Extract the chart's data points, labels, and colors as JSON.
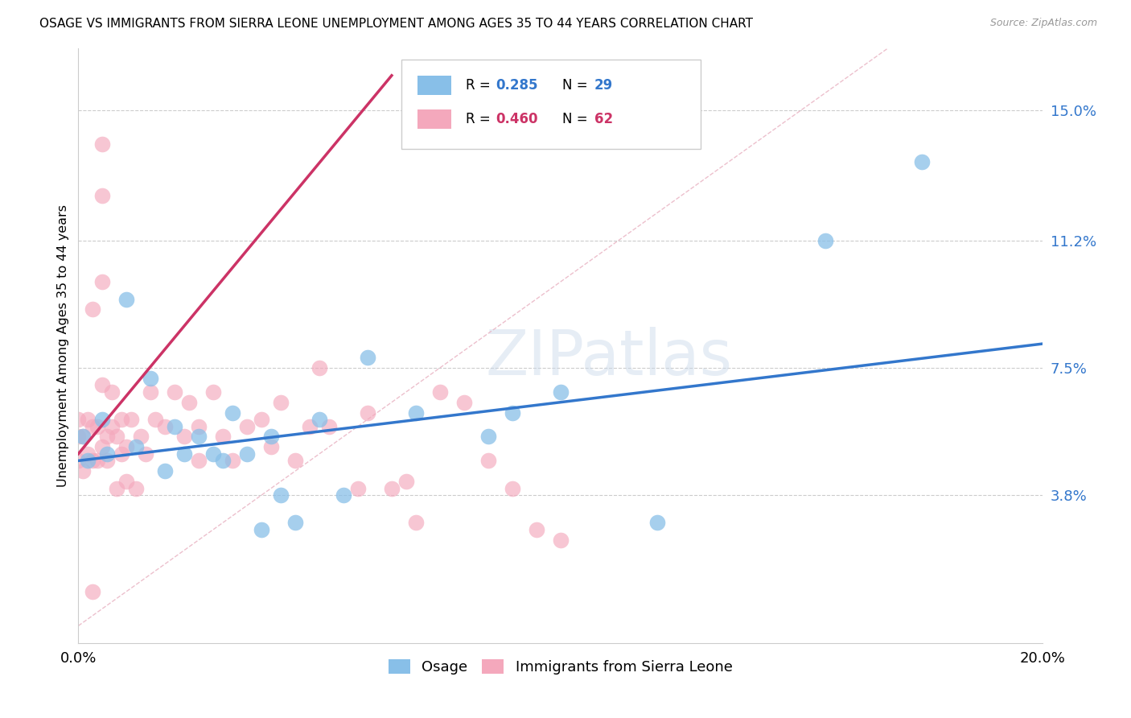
{
  "title": "OSAGE VS IMMIGRANTS FROM SIERRA LEONE UNEMPLOYMENT AMONG AGES 35 TO 44 YEARS CORRELATION CHART",
  "source": "Source: ZipAtlas.com",
  "ylabel": "Unemployment Among Ages 35 to 44 years",
  "legend_blue_label": "Osage",
  "legend_pink_label": "Immigrants from Sierra Leone",
  "xlim": [
    0.0,
    0.2
  ],
  "ylim": [
    -0.005,
    0.168
  ],
  "yticks": [
    0.038,
    0.075,
    0.112,
    0.15
  ],
  "ytick_labels": [
    "3.8%",
    "7.5%",
    "11.2%",
    "15.0%"
  ],
  "xticks": [
    0.0,
    0.04,
    0.08,
    0.12,
    0.16,
    0.2
  ],
  "xtick_labels": [
    "0.0%",
    "",
    "",
    "",
    "",
    "20.0%"
  ],
  "blue_color": "#88bfe8",
  "pink_color": "#f4a8bc",
  "blue_line_color": "#3377cc",
  "pink_line_color": "#cc3366",
  "watermark": "ZIPatlas",
  "blue_scatter_x": [
    0.001,
    0.002,
    0.005,
    0.006,
    0.01,
    0.012,
    0.015,
    0.018,
    0.02,
    0.022,
    0.025,
    0.028,
    0.03,
    0.032,
    0.035,
    0.038,
    0.04,
    0.042,
    0.045,
    0.05,
    0.055,
    0.06,
    0.07,
    0.085,
    0.09,
    0.1,
    0.12,
    0.155,
    0.175
  ],
  "blue_scatter_y": [
    0.055,
    0.048,
    0.06,
    0.05,
    0.095,
    0.052,
    0.072,
    0.045,
    0.058,
    0.05,
    0.055,
    0.05,
    0.048,
    0.062,
    0.05,
    0.028,
    0.055,
    0.038,
    0.03,
    0.06,
    0.038,
    0.078,
    0.062,
    0.055,
    0.062,
    0.068,
    0.03,
    0.112,
    0.135
  ],
  "pink_scatter_x": [
    0.0,
    0.0,
    0.0,
    0.001,
    0.001,
    0.002,
    0.002,
    0.003,
    0.003,
    0.004,
    0.004,
    0.005,
    0.005,
    0.005,
    0.005,
    0.006,
    0.006,
    0.007,
    0.007,
    0.008,
    0.008,
    0.009,
    0.009,
    0.01,
    0.01,
    0.011,
    0.012,
    0.013,
    0.014,
    0.015,
    0.016,
    0.018,
    0.02,
    0.022,
    0.023,
    0.025,
    0.025,
    0.028,
    0.03,
    0.032,
    0.035,
    0.038,
    0.04,
    0.042,
    0.045,
    0.048,
    0.05,
    0.052,
    0.058,
    0.06,
    0.065,
    0.068,
    0.07,
    0.075,
    0.08,
    0.085,
    0.09,
    0.095,
    0.1,
    0.005,
    0.003,
    0.003
  ],
  "pink_scatter_y": [
    0.06,
    0.055,
    0.048,
    0.055,
    0.045,
    0.06,
    0.05,
    0.058,
    0.048,
    0.058,
    0.048,
    0.14,
    0.125,
    0.07,
    0.052,
    0.055,
    0.048,
    0.068,
    0.058,
    0.055,
    0.04,
    0.06,
    0.05,
    0.052,
    0.042,
    0.06,
    0.04,
    0.055,
    0.05,
    0.068,
    0.06,
    0.058,
    0.068,
    0.055,
    0.065,
    0.058,
    0.048,
    0.068,
    0.055,
    0.048,
    0.058,
    0.06,
    0.052,
    0.065,
    0.048,
    0.058,
    0.075,
    0.058,
    0.04,
    0.062,
    0.04,
    0.042,
    0.03,
    0.068,
    0.065,
    0.048,
    0.04,
    0.028,
    0.025,
    0.1,
    0.092,
    0.01
  ],
  "blue_trend_x": [
    0.0,
    0.2
  ],
  "blue_trend_y": [
    0.048,
    0.082
  ],
  "pink_trend_x": [
    0.0,
    0.065
  ],
  "pink_trend_y": [
    0.05,
    0.16
  ],
  "ref_line_x": [
    0.0,
    0.168
  ],
  "ref_line_y": [
    0.0,
    0.168
  ]
}
